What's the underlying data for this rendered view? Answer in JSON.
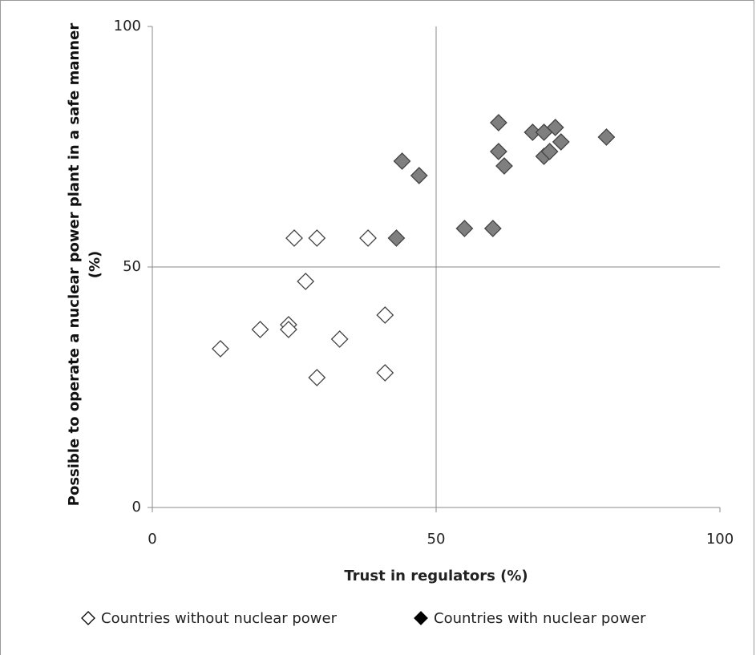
{
  "chart_data": {
    "type": "scatter",
    "x_label": "Trust in regulators (%)",
    "y_label": "Possible to operate a nuclear power plant in a safe manner (%)",
    "xlim": [
      0,
      100
    ],
    "xticks": [
      0,
      50,
      100
    ],
    "ylim": [
      0,
      100
    ],
    "yticks": [
      0,
      50,
      100
    ],
    "grid": true,
    "legend": "bottom",
    "series": [
      {
        "name": "Countries without nuclear power",
        "color": "#ffffff",
        "x": [
          25,
          29,
          38,
          27,
          19,
          24,
          24,
          12,
          33,
          41,
          29,
          41
        ],
        "values": [
          56,
          56,
          56,
          47,
          37,
          38,
          37,
          33,
          35,
          40,
          27,
          28
        ]
      },
      {
        "name": "Countries with nuclear power",
        "color": "#7f7f7f",
        "x": [
          44,
          47,
          43,
          55,
          60,
          61,
          61,
          62,
          67,
          69,
          71,
          69,
          70,
          72,
          80
        ],
        "values": [
          72,
          69,
          56,
          58,
          58,
          80,
          74,
          71,
          78,
          78,
          79,
          73,
          74,
          76,
          77
        ]
      }
    ]
  }
}
